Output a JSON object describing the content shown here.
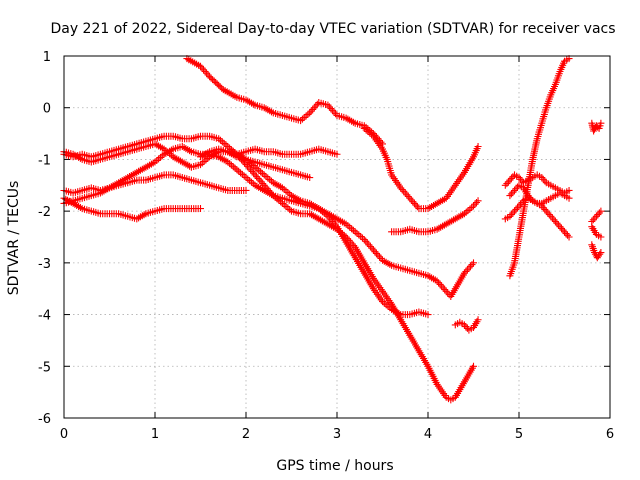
{
  "chart_data": {
    "type": "scatter",
    "title": "Day 221 of 2022, Sidereal Day-to-day VTEC variation (SDTVAR) for receiver vacs",
    "xlabel": "GPS time / hours",
    "ylabel": "SDTVAR / TECUs",
    "xlim": [
      0,
      6
    ],
    "ylim": [
      -6,
      1
    ],
    "xticks": [
      0,
      1,
      2,
      3,
      4,
      5,
      6
    ],
    "yticks": [
      -6,
      -5,
      -4,
      -3,
      -2,
      -1,
      0,
      1
    ],
    "xtick_labels": [
      "0",
      "1",
      "2",
      "3",
      "4",
      "5",
      "6"
    ],
    "ytick_labels": [
      "-6",
      "-5",
      "-4",
      "-3",
      "-2",
      "-1",
      "0",
      "1"
    ],
    "grid": true,
    "marker": "+",
    "color": "#ff0000",
    "series": [
      {
        "name": "s1",
        "x": [
          1.35,
          1.5,
          1.6,
          1.75,
          1.9,
          2.0,
          2.1,
          2.2,
          2.3,
          2.4,
          2.5,
          2.6,
          2.7,
          2.8,
          2.9,
          3.0,
          3.1,
          3.2,
          3.3,
          3.4,
          3.5
        ],
        "y": [
          0.95,
          0.8,
          0.6,
          0.35,
          0.2,
          0.15,
          0.05,
          0.0,
          -0.1,
          -0.15,
          -0.2,
          -0.25,
          -0.1,
          0.1,
          0.05,
          -0.15,
          -0.2,
          -0.3,
          -0.35,
          -0.5,
          -0.7
        ]
      },
      {
        "name": "s2",
        "x": [
          3.3,
          3.4,
          3.5,
          3.55,
          3.6,
          3.7,
          3.8,
          3.9,
          4.0,
          4.1,
          4.2,
          4.3,
          4.4,
          4.5,
          4.55
        ],
        "y": [
          -0.4,
          -0.55,
          -0.8,
          -1.0,
          -1.3,
          -1.55,
          -1.75,
          -1.95,
          -1.95,
          -1.85,
          -1.75,
          -1.5,
          -1.25,
          -0.95,
          -0.75
        ]
      },
      {
        "name": "s3",
        "x": [
          0.0,
          0.1,
          0.2,
          0.3,
          0.4,
          0.5,
          0.6,
          0.7,
          0.8,
          0.9,
          1.0,
          1.1,
          1.2,
          1.3,
          1.4,
          1.5,
          1.6,
          1.7,
          1.8,
          1.9,
          2.0,
          2.1,
          2.2,
          2.3,
          2.4,
          2.5,
          2.6,
          2.7,
          2.8,
          2.9,
          3.0,
          3.1,
          3.2,
          3.3,
          3.4,
          3.5,
          3.6,
          3.7,
          3.8,
          3.9,
          4.0,
          4.1,
          4.2,
          4.25,
          4.3,
          4.4,
          4.5
        ],
        "y": [
          -0.9,
          -0.95,
          -0.9,
          -0.95,
          -0.9,
          -0.85,
          -0.8,
          -0.75,
          -0.7,
          -0.65,
          -0.6,
          -0.55,
          -0.55,
          -0.6,
          -0.6,
          -0.55,
          -0.55,
          -0.6,
          -0.75,
          -0.9,
          -1.1,
          -1.3,
          -1.5,
          -1.7,
          -1.85,
          -2.0,
          -2.05,
          -2.05,
          -2.15,
          -2.25,
          -2.35,
          -2.5,
          -2.7,
          -3.0,
          -3.3,
          -3.55,
          -3.8,
          -4.1,
          -4.4,
          -4.7,
          -5.0,
          -5.35,
          -5.6,
          -5.65,
          -5.6,
          -5.3,
          -5.0
        ]
      },
      {
        "name": "s4",
        "x": [
          0.0,
          0.1,
          0.2,
          0.3,
          0.4,
          0.5,
          0.6,
          0.7,
          0.8,
          0.9,
          1.0,
          1.1,
          1.2,
          1.3,
          1.4,
          1.5,
          1.6,
          1.7,
          1.8,
          1.9,
          2.0,
          2.1,
          2.2,
          2.3,
          2.4,
          2.5,
          2.6,
          2.7,
          2.8,
          2.9,
          3.0,
          3.1,
          3.2,
          3.3,
          3.4,
          3.5,
          3.6,
          3.7,
          3.8,
          3.9,
          4.0
        ],
        "y": [
          -1.85,
          -1.8,
          -1.75,
          -1.7,
          -1.65,
          -1.55,
          -1.45,
          -1.35,
          -1.25,
          -1.15,
          -1.05,
          -0.9,
          -0.8,
          -0.75,
          -0.85,
          -0.9,
          -0.9,
          -0.95,
          -1.05,
          -1.2,
          -1.35,
          -1.5,
          -1.6,
          -1.7,
          -1.75,
          -1.8,
          -1.85,
          -1.9,
          -1.95,
          -2.1,
          -2.3,
          -2.6,
          -2.9,
          -3.2,
          -3.5,
          -3.75,
          -3.9,
          -4.0,
          -4.0,
          -3.95,
          -4.0
        ]
      },
      {
        "name": "s5",
        "x": [
          0.0,
          0.1,
          0.2,
          0.3,
          0.4,
          0.5,
          0.6,
          0.7,
          0.8,
          0.9,
          1.0,
          1.1,
          1.2,
          1.3,
          1.4,
          1.5,
          1.6,
          1.7,
          1.8,
          1.9,
          2.0,
          2.1,
          2.2,
          2.3,
          2.4,
          2.5,
          2.6,
          2.7,
          2.8,
          2.9,
          3.0,
          3.1,
          3.2,
          3.3,
          3.4,
          3.5,
          3.6,
          3.7,
          3.8,
          3.9,
          4.0,
          4.1,
          4.2,
          4.25,
          4.3,
          4.4,
          4.5
        ],
        "y": [
          -0.85,
          -0.9,
          -1.0,
          -1.05,
          -1.0,
          -0.95,
          -0.9,
          -0.85,
          -0.8,
          -0.75,
          -0.7,
          -0.8,
          -0.95,
          -1.05,
          -1.15,
          -1.1,
          -0.95,
          -0.85,
          -0.85,
          -0.9,
          -1.0,
          -1.15,
          -1.3,
          -1.45,
          -1.55,
          -1.7,
          -1.8,
          -1.85,
          -1.95,
          -2.05,
          -2.15,
          -2.25,
          -2.4,
          -2.55,
          -2.75,
          -2.95,
          -3.05,
          -3.1,
          -3.15,
          -3.2,
          -3.25,
          -3.35,
          -3.55,
          -3.65,
          -3.5,
          -3.2,
          -3.0
        ]
      },
      {
        "name": "s6",
        "x": [
          0.0,
          0.1,
          0.2,
          0.3,
          0.4,
          0.5,
          0.6,
          0.7,
          0.8,
          0.9,
          1.0,
          1.1,
          1.2,
          1.3,
          1.4,
          1.5,
          1.6,
          1.7,
          1.8,
          1.9,
          2.0
        ],
        "y": [
          -1.6,
          -1.65,
          -1.6,
          -1.55,
          -1.6,
          -1.55,
          -1.5,
          -1.45,
          -1.4,
          -1.4,
          -1.35,
          -1.3,
          -1.3,
          -1.35,
          -1.4,
          -1.45,
          -1.5,
          -1.55,
          -1.6,
          -1.6,
          -1.6
        ]
      },
      {
        "name": "s7",
        "x": [
          0.0,
          0.1,
          0.2,
          0.3,
          0.4,
          0.5,
          0.6,
          0.7,
          0.8,
          0.9,
          1.0,
          1.1,
          1.2,
          1.3,
          1.4,
          1.5
        ],
        "y": [
          -1.75,
          -1.85,
          -1.95,
          -2.0,
          -2.05,
          -2.05,
          -2.05,
          -2.1,
          -2.15,
          -2.05,
          -2.0,
          -1.95,
          -1.95,
          -1.95,
          -1.95,
          -1.95
        ]
      },
      {
        "name": "s8",
        "x": [
          1.8,
          1.9,
          2.0,
          2.1,
          2.2,
          2.3,
          2.4,
          2.5,
          2.6,
          2.7,
          2.8,
          2.9,
          3.0
        ],
        "y": [
          -0.85,
          -0.9,
          -0.85,
          -0.8,
          -0.85,
          -0.85,
          -0.9,
          -0.9,
          -0.9,
          -0.85,
          -0.8,
          -0.85,
          -0.9
        ]
      },
      {
        "name": "s9",
        "x": [
          1.5,
          1.6,
          1.7,
          1.8,
          1.9,
          2.0,
          2.1,
          2.2,
          2.3,
          2.4,
          2.5,
          2.6,
          2.7
        ],
        "y": [
          -0.95,
          -0.85,
          -0.8,
          -0.85,
          -0.95,
          -1.0,
          -1.05,
          -1.1,
          -1.15,
          -1.2,
          -1.25,
          -1.3,
          -1.35
        ]
      },
      {
        "name": "s10",
        "x": [
          3.6,
          3.7,
          3.8,
          3.9,
          4.0,
          4.1,
          4.2,
          4.3,
          4.4,
          4.5,
          4.55
        ],
        "y": [
          -2.4,
          -2.4,
          -2.35,
          -2.4,
          -2.4,
          -2.35,
          -2.25,
          -2.15,
          -2.05,
          -1.9,
          -1.8
        ]
      },
      {
        "name": "s11",
        "x": [
          4.3,
          4.35,
          4.4,
          4.45,
          4.5,
          4.55
        ],
        "y": [
          -4.2,
          -4.15,
          -4.2,
          -4.3,
          -4.25,
          -4.1
        ]
      },
      {
        "name": "s12",
        "x": [
          4.9,
          4.95,
          5.0,
          5.05,
          5.1,
          5.15,
          5.2,
          5.25,
          5.3,
          5.35,
          5.4,
          5.45,
          5.5,
          5.55
        ],
        "y": [
          -3.25,
          -3.0,
          -2.5,
          -2.0,
          -1.5,
          -1.0,
          -0.6,
          -0.3,
          0.0,
          0.25,
          0.45,
          0.7,
          0.9,
          0.95
        ]
      },
      {
        "name": "s13",
        "x": [
          4.85,
          4.9,
          4.95,
          5.0,
          5.05,
          5.1,
          5.15,
          5.2,
          5.25,
          5.3,
          5.35,
          5.4,
          5.45,
          5.5,
          5.55
        ],
        "y": [
          -1.5,
          -1.4,
          -1.3,
          -1.35,
          -1.45,
          -1.4,
          -1.35,
          -1.3,
          -1.35,
          -1.45,
          -1.5,
          -1.55,
          -1.6,
          -1.65,
          -1.6
        ]
      },
      {
        "name": "s14",
        "x": [
          4.85,
          4.9,
          4.95,
          5.0,
          5.05,
          5.1,
          5.15,
          5.2,
          5.25,
          5.3,
          5.35,
          5.4,
          5.45,
          5.5,
          5.55
        ],
        "y": [
          -2.15,
          -2.1,
          -2.0,
          -1.9,
          -1.8,
          -1.75,
          -1.8,
          -1.85,
          -1.9,
          -2.0,
          -2.1,
          -2.2,
          -2.3,
          -2.4,
          -2.5
        ]
      },
      {
        "name": "s15",
        "x": [
          4.9,
          4.95,
          5.0,
          5.05,
          5.1,
          5.15,
          5.2,
          5.25,
          5.3,
          5.35,
          5.4,
          5.45,
          5.5,
          5.55
        ],
        "y": [
          -1.7,
          -1.6,
          -1.5,
          -1.55,
          -1.7,
          -1.8,
          -1.85,
          -1.85,
          -1.8,
          -1.75,
          -1.7,
          -1.65,
          -1.7,
          -1.75
        ]
      },
      {
        "name": "s16",
        "x": [
          5.8,
          5.82,
          5.85,
          5.88,
          5.9
        ],
        "y": [
          -0.3,
          -0.45,
          -0.35,
          -0.4,
          -0.3
        ]
      },
      {
        "name": "s17",
        "x": [
          5.8,
          5.83,
          5.86,
          5.9
        ],
        "y": [
          -2.65,
          -2.8,
          -2.9,
          -2.8
        ]
      },
      {
        "name": "s18",
        "x": [
          5.8,
          5.85,
          5.9
        ],
        "y": [
          -2.3,
          -2.45,
          -2.5
        ]
      },
      {
        "name": "s19",
        "x": [
          5.8,
          5.85,
          5.9
        ],
        "y": [
          -2.2,
          -2.1,
          -2.0
        ]
      }
    ]
  }
}
